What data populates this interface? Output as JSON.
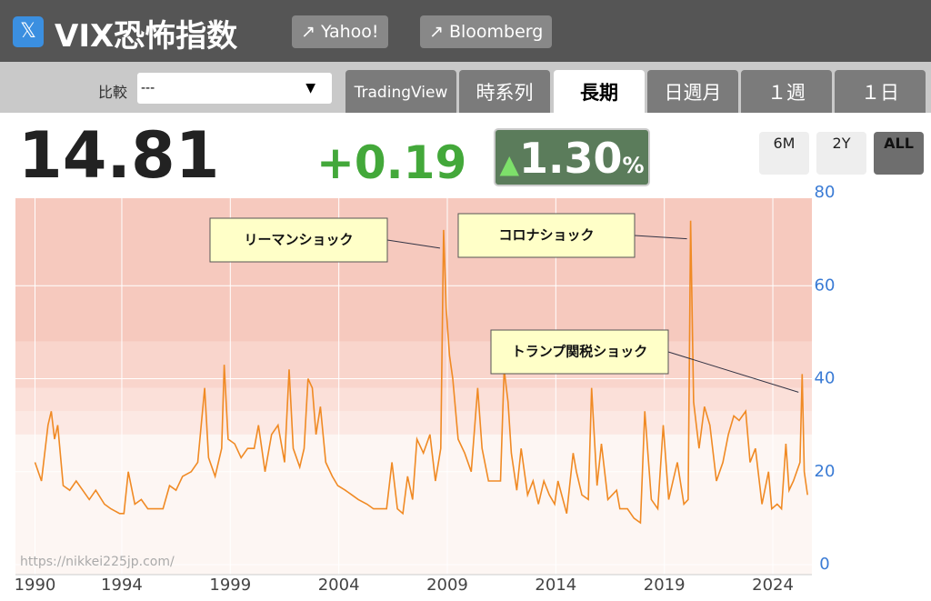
{
  "header": {
    "title": "VIX恐怖指数",
    "links": [
      "Yahoo!",
      "Bloomberg"
    ]
  },
  "toolbar": {
    "compare_label": "比較",
    "compare_value": "---",
    "tabs": [
      "TradingView",
      "時系列",
      "長期",
      "日週月",
      "１週",
      "１日"
    ],
    "active_tab": 2
  },
  "quote": {
    "price": "14.81",
    "change": "+0.19",
    "change_percent": "1.30",
    "percent_sign": "%",
    "ranges": [
      "6M",
      "2Y",
      "ALL"
    ],
    "active_range": 2
  },
  "chart_data": {
    "type": "line",
    "watermark": "https://nikkei225jp.com/",
    "xlim": [
      1989.1,
      2025.8
    ],
    "xticks": [
      1990,
      1994,
      1999,
      2004,
      2009,
      2014,
      2019,
      2024
    ],
    "ylim": [
      0,
      80
    ],
    "yticks": [
      0,
      20,
      40,
      60,
      80
    ],
    "grid": true,
    "bands": [
      {
        "from": 28,
        "to": 33,
        "color": "#fce8e3"
      },
      {
        "from": 33,
        "to": 38,
        "color": "#fbe0d9"
      },
      {
        "from": 38,
        "to": 48,
        "color": "#f9d5cc"
      },
      {
        "from": 48,
        "to": 80,
        "color": "#f6c9be"
      }
    ],
    "background": "#fdf6f3",
    "annotations": [
      {
        "text": "リーマンショック",
        "x": 2008.83,
        "y": 72
      },
      {
        "text": "コロナショック",
        "x": 2020.21,
        "y": 74
      },
      {
        "text": "トランプ関税ショック",
        "x": 2025.35,
        "y": 41
      }
    ],
    "series": [
      {
        "color": "#f08a24",
        "x": [
          1990.0,
          1990.3,
          1990.6,
          1990.75,
          1990.9,
          1991.05,
          1991.3,
          1991.6,
          1991.9,
          1992.2,
          1992.5,
          1992.8,
          1993.2,
          1993.5,
          1993.9,
          1994.1,
          1994.3,
          1994.6,
          1994.9,
          1995.2,
          1995.5,
          1995.9,
          1996.2,
          1996.5,
          1996.8,
          1997.2,
          1997.5,
          1997.82,
          1998.0,
          1998.3,
          1998.6,
          1998.72,
          1998.9,
          1999.2,
          1999.5,
          1999.8,
          2000.1,
          2000.3,
          2000.6,
          2000.9,
          2001.2,
          2001.5,
          2001.71,
          2001.9,
          2002.2,
          2002.4,
          2002.58,
          2002.78,
          2002.95,
          2003.15,
          2003.4,
          2003.7,
          2003.95,
          2004.3,
          2004.6,
          2004.9,
          2005.3,
          2005.6,
          2005.9,
          2006.2,
          2006.45,
          2006.7,
          2006.95,
          2007.17,
          2007.4,
          2007.6,
          2007.9,
          2008.2,
          2008.45,
          2008.7,
          2008.83,
          2008.95,
          2009.1,
          2009.25,
          2009.5,
          2009.8,
          2010.1,
          2010.4,
          2010.6,
          2010.9,
          2011.2,
          2011.45,
          2011.62,
          2011.8,
          2011.95,
          2012.2,
          2012.4,
          2012.7,
          2012.95,
          2013.2,
          2013.45,
          2013.7,
          2013.95,
          2014.1,
          2014.5,
          2014.8,
          2014.95,
          2015.2,
          2015.5,
          2015.65,
          2015.9,
          2016.1,
          2016.4,
          2016.8,
          2016.95,
          2017.3,
          2017.6,
          2017.9,
          2018.1,
          2018.4,
          2018.7,
          2018.95,
          2019.2,
          2019.4,
          2019.6,
          2019.9,
          2020.1,
          2020.21,
          2020.35,
          2020.6,
          2020.85,
          2021.1,
          2021.4,
          2021.7,
          2021.95,
          2022.2,
          2022.45,
          2022.75,
          2022.95,
          2023.2,
          2023.5,
          2023.8,
          2023.95,
          2024.2,
          2024.4,
          2024.6,
          2024.75,
          2024.95,
          2025.25,
          2025.35,
          2025.45,
          2025.6
        ],
        "values": [
          22,
          18,
          30,
          33,
          27,
          30,
          17,
          16,
          18,
          16,
          14,
          16,
          13,
          12,
          11,
          11,
          20,
          13,
          14,
          12,
          12,
          12,
          17,
          16,
          19,
          20,
          22,
          38,
          23,
          19,
          25,
          43,
          27,
          26,
          23,
          25,
          25,
          30,
          20,
          28,
          30,
          22,
          42,
          25,
          21,
          25,
          40,
          38,
          28,
          34,
          22,
          19,
          17,
          16,
          15,
          14,
          13,
          12,
          12,
          12,
          22,
          12,
          11,
          19,
          14,
          27,
          24,
          28,
          18,
          25,
          72,
          55,
          45,
          40,
          27,
          24,
          20,
          38,
          25,
          18,
          18,
          18,
          42,
          35,
          24,
          16,
          25,
          15,
          18,
          13,
          18,
          15,
          13,
          18,
          11,
          24,
          20,
          15,
          14,
          38,
          17,
          26,
          14,
          16,
          12,
          12,
          10,
          9,
          33,
          14,
          12,
          30,
          14,
          18,
          22,
          13,
          14,
          74,
          35,
          25,
          34,
          30,
          18,
          22,
          28,
          32,
          31,
          33,
          22,
          25,
          13,
          20,
          12,
          13,
          12,
          26,
          16,
          18,
          22,
          41,
          20,
          15
        ]
      }
    ]
  }
}
